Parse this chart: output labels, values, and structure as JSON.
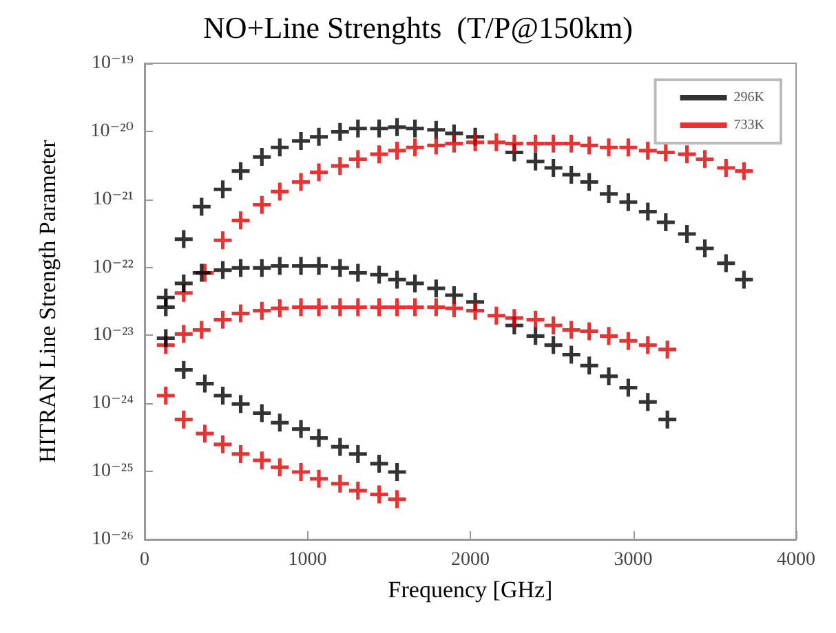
{
  "chart_data": {
    "type": "scatter",
    "title": "NO+Line Strenghts  (T/P@150km)",
    "xlabel": "Frequency [GHz]",
    "ylabel": "HITRAN Line Strength Parameter",
    "log": "y",
    "grid": false,
    "legend": "top right",
    "marker": "cross",
    "xlim": [
      0,
      4000
    ],
    "xticks": [
      0,
      1000,
      2000,
      3000,
      4000
    ],
    "ylim": [
      1e-26,
      1e-19
    ],
    "yticks": [
      {
        "value": 1e-26,
        "label": "10⁻²⁶"
      },
      {
        "value": 1e-25,
        "label": "10⁻²⁵"
      },
      {
        "value": 1e-24,
        "label": "10⁻²⁴"
      },
      {
        "value": 1e-23,
        "label": "10⁻²³"
      },
      {
        "value": 1e-22,
        "label": "10⁻²²"
      },
      {
        "value": 1e-21,
        "label": "10⁻²¹"
      },
      {
        "value": 1e-20,
        "label": "10⁻²⁰"
      },
      {
        "value": 1e-19,
        "label": "10⁻¹⁹"
      }
    ],
    "series": [
      {
        "name": "296K",
        "color": "#000000",
        "x": [
          130,
          240,
          350,
          480,
          590,
          720,
          830,
          960,
          1070,
          1200,
          1310,
          1440,
          1550,
          1660,
          1790,
          1900,
          2030,
          2160,
          2270,
          2400,
          2510,
          2620,
          2730,
          2850,
          2970,
          3090,
          3200,
          3330,
          3440,
          3570,
          3680
        ],
        "values": [
          3.6e-23,
          2.6e-22,
          7.8e-22,
          1.4e-21,
          2.6e-21,
          4.2e-21,
          5.8e-21,
          7.2e-21,
          8.3e-21,
          9.8e-21,
          1.1e-20,
          1.1e-20,
          1.15e-20,
          1.1e-20,
          1.05e-20,
          9.3e-21,
          8.3e-21,
          null,
          4.9e-21,
          3.6e-21,
          2.9e-21,
          2.3e-21,
          1.8e-21,
          1.2e-21,
          9.1e-22,
          6.6e-22,
          4.6e-22,
          3.1e-22,
          1.9e-22,
          1.15e-22,
          6.6e-23
        ]
      },
      {
        "name": "733K",
        "color": "#e00000",
        "x": [
          240,
          370,
          480,
          590,
          720,
          830,
          960,
          1070,
          1200,
          1310,
          1440,
          1550,
          1660,
          1790,
          1900,
          2030,
          2160,
          2270,
          2400,
          2510,
          2620,
          2730,
          2850,
          2970,
          3090,
          3200,
          3330,
          3440,
          3570,
          3680
        ],
        "values": [
          4.2e-23,
          8.3e-23,
          2.5e-22,
          4.9e-22,
          8.3e-22,
          1.3e-21,
          1.8e-21,
          2.5e-21,
          3.1e-21,
          3.9e-21,
          4.6e-21,
          5.2e-21,
          5.8e-21,
          6.2e-21,
          6.6e-21,
          6.9e-21,
          6.9e-21,
          6.6e-21,
          6.6e-21,
          6.6e-21,
          6.6e-21,
          6.2e-21,
          5.8e-21,
          5.8e-21,
          5.2e-21,
          4.9e-21,
          4.6e-21,
          3.9e-21,
          2.9e-21,
          2.6e-21
        ]
      },
      {
        "color": "#000000",
        "x": [
          130,
          240,
          350,
          480,
          590,
          720,
          830,
          960,
          1070,
          1200,
          1310,
          1440,
          1550,
          1660,
          1790,
          1900,
          2030,
          2160,
          2270,
          2400,
          2510,
          2620,
          2730,
          2850,
          2970,
          3090,
          3210
        ],
        "values": [
          2.6e-23,
          5.8e-23,
          8.3e-23,
          9.1e-23,
          9.8e-23,
          9.8e-23,
          1.05e-22,
          1.05e-22,
          1.05e-22,
          9.8e-23,
          8.3e-23,
          7.8e-23,
          6.6e-23,
          5.8e-23,
          4.9e-23,
          3.9e-23,
          3.1e-23,
          null,
          1.4e-23,
          9.8e-24,
          7.2e-24,
          5.2e-24,
          3.6e-24,
          2.5e-24,
          1.7e-24,
          1.05e-24,
          5.8e-25
        ]
      },
      {
        "color": "#e00000",
        "x": [
          130,
          240,
          350,
          480,
          590,
          720,
          830,
          960,
          1070,
          1200,
          1310,
          1440,
          1550,
          1660,
          1790,
          1900,
          2030,
          2160,
          2270,
          2400,
          2510,
          2620,
          2730,
          2850,
          2970,
          3090,
          3210
        ],
        "values": [
          7.2e-24,
          1.05e-23,
          1.2e-23,
          1.7e-23,
          2.1e-23,
          2.3e-23,
          2.5e-23,
          2.6e-23,
          2.6e-23,
          2.6e-23,
          2.6e-23,
          2.6e-23,
          2.6e-23,
          2.6e-23,
          2.6e-23,
          2.5e-23,
          2.3e-23,
          1.95e-23,
          1.8e-23,
          1.7e-23,
          1.4e-23,
          1.2e-23,
          1.15e-23,
          9.8e-24,
          8.3e-24,
          7.2e-24,
          6.2e-24
        ]
      },
      {
        "color": "#000000",
        "x": [
          130,
          240,
          370,
          480,
          590,
          720,
          830,
          960,
          1070,
          1200,
          1310,
          1440,
          1550
        ],
        "values": [
          9.1e-24,
          3.1e-24,
          1.95e-24,
          1.3e-24,
          9.8e-25,
          7.2e-25,
          5.2e-25,
          4.2e-25,
          3.1e-25,
          2.3e-25,
          1.8e-25,
          1.3e-25,
          9.8e-26
        ]
      },
      {
        "color": "#e00000",
        "x": [
          130,
          240,
          370,
          480,
          590,
          720,
          830,
          960,
          1070,
          1200,
          1310,
          1440,
          1550
        ],
        "values": [
          1.3e-24,
          5.8e-25,
          3.6e-25,
          2.5e-25,
          1.8e-25,
          1.45e-25,
          1.15e-25,
          9.8e-26,
          7.8e-26,
          6.6e-26,
          5.2e-26,
          4.6e-26,
          3.9e-26
        ]
      }
    ]
  }
}
